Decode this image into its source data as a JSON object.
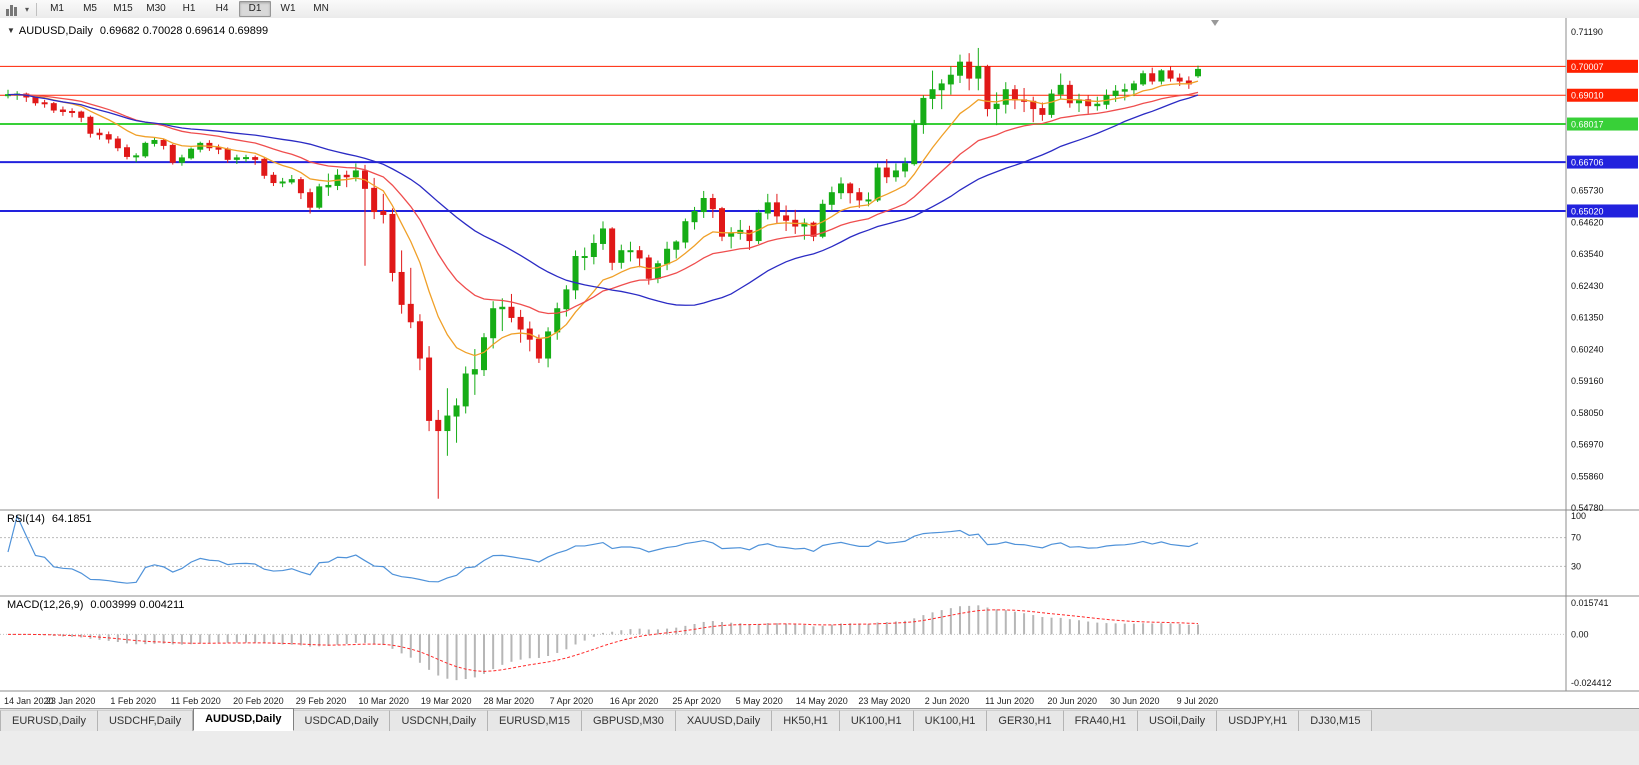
{
  "toolbar": {
    "timeframes": [
      "M1",
      "M5",
      "M15",
      "M30",
      "H1",
      "H4",
      "D1",
      "W1",
      "MN"
    ],
    "selected_timeframe": "D1"
  },
  "icons": {
    "chart_collapse": "▼",
    "toolbar_caret": "▾"
  },
  "main_chart": {
    "title": "AUDUSD,Daily",
    "ohlc": "0.69682 0.70028 0.69614 0.69899"
  },
  "rsi_panel": {
    "label": "RSI(14)",
    "value": "64.1851"
  },
  "macd_panel": {
    "label": "MACD(12,26,9)",
    "values": "0.003999 0.004211"
  },
  "chart_data": {
    "type": "candlestick",
    "title": "AUDUSD,Daily",
    "y_range": [
      0.5478,
      0.7119
    ],
    "y_ticks": [
      "0.71190",
      "0.65730",
      "0.64620",
      "0.63540",
      "0.62430",
      "0.61350",
      "0.60240",
      "0.59160",
      "0.58050",
      "0.56970",
      "0.55860",
      "0.54780"
    ],
    "x_labels": [
      "14 Jan 2020",
      "23 Jan 2020",
      "1 Feb 2020",
      "11 Feb 2020",
      "20 Feb 2020",
      "29 Feb 2020",
      "10 Mar 2020",
      "19 Mar 2020",
      "28 Mar 2020",
      "7 Apr 2020",
      "16 Apr 2020",
      "25 Apr 2020",
      "5 May 2020",
      "14 May 2020",
      "23 May 2020",
      "2 Jun 2020",
      "11 Jun 2020",
      "20 Jun 2020",
      "30 Jun 2020",
      "9 Jul 2020"
    ],
    "up_color": "#16ad16",
    "down_color": "#e01818",
    "hlines": [
      {
        "value": 0.70007,
        "label": "0.70007",
        "color": "#ff2000",
        "width": 1
      },
      {
        "value": 0.6901,
        "label": "0.69010",
        "color": "#ff2000",
        "width": 1
      },
      {
        "value": 0.68017,
        "label": "0.68017",
        "color": "#38d038",
        "width": 2
      },
      {
        "value": 0.66706,
        "label": "0.66706",
        "color": "#2222dd",
        "width": 2
      },
      {
        "value": 0.6502,
        "label": "0.65020",
        "color": "#2222dd",
        "width": 2
      }
    ],
    "moving_averages": [
      {
        "type": "ema",
        "period": 10,
        "color": "#f0a028"
      },
      {
        "type": "ema",
        "period": 22,
        "color": "#ef4e4e"
      },
      {
        "type": "sma",
        "period": 34,
        "color": "#2b2bc4"
      }
    ],
    "rsi": {
      "period": 14,
      "value": 64.1851,
      "color": "#4f92d9",
      "levels": [
        100,
        70,
        30
      ]
    },
    "macd": {
      "fast": 12,
      "slow": 26,
      "signal": 9,
      "hist_color": "#b6b6b6",
      "signal_color": "#ff2a2a",
      "axis_labels": [
        "0.015741",
        "0.00",
        "-0.024412"
      ]
    },
    "candles_ohlc": [
      [
        0.69,
        0.692,
        0.689,
        0.6903
      ],
      [
        0.6903,
        0.6915,
        0.6885,
        0.6905
      ],
      [
        0.6905,
        0.691,
        0.6878,
        0.6895
      ],
      [
        0.6895,
        0.69,
        0.6865,
        0.6875
      ],
      [
        0.6875,
        0.6885,
        0.6858,
        0.6872
      ],
      [
        0.6872,
        0.6878,
        0.684,
        0.685
      ],
      [
        0.685,
        0.6862,
        0.683,
        0.6845
      ],
      [
        0.6845,
        0.6856,
        0.6825,
        0.6843
      ],
      [
        0.6843,
        0.6848,
        0.6808,
        0.6825
      ],
      [
        0.6825,
        0.6831,
        0.6755,
        0.677
      ],
      [
        0.677,
        0.6786,
        0.6748,
        0.6765
      ],
      [
        0.6765,
        0.6776,
        0.6735,
        0.675
      ],
      [
        0.675,
        0.676,
        0.6708,
        0.672
      ],
      [
        0.672,
        0.6731,
        0.668,
        0.669
      ],
      [
        0.669,
        0.6701,
        0.667,
        0.6692
      ],
      [
        0.6692,
        0.6741,
        0.6685,
        0.6735
      ],
      [
        0.6735,
        0.6756,
        0.6724,
        0.6745
      ],
      [
        0.6745,
        0.6751,
        0.6714,
        0.6728
      ],
      [
        0.6728,
        0.6733,
        0.6662,
        0.667
      ],
      [
        0.667,
        0.6696,
        0.6658,
        0.6685
      ],
      [
        0.6685,
        0.6721,
        0.6679,
        0.6715
      ],
      [
        0.6715,
        0.6741,
        0.6704,
        0.6735
      ],
      [
        0.6735,
        0.6746,
        0.6709,
        0.672
      ],
      [
        0.672,
        0.6731,
        0.6698,
        0.6715
      ],
      [
        0.6715,
        0.6721,
        0.6668,
        0.668
      ],
      [
        0.668,
        0.6696,
        0.6664,
        0.6685
      ],
      [
        0.6685,
        0.6696,
        0.6671,
        0.6686
      ],
      [
        0.6686,
        0.6693,
        0.6661,
        0.668
      ],
      [
        0.668,
        0.6686,
        0.6613,
        0.6625
      ],
      [
        0.6625,
        0.6636,
        0.6588,
        0.66
      ],
      [
        0.66,
        0.6616,
        0.6584,
        0.6602
      ],
      [
        0.6602,
        0.6626,
        0.6594,
        0.661
      ],
      [
        0.661,
        0.6619,
        0.6543,
        0.6565
      ],
      [
        0.6565,
        0.6579,
        0.6493,
        0.6515
      ],
      [
        0.6515,
        0.6596,
        0.6508,
        0.6585
      ],
      [
        0.6585,
        0.6631,
        0.6554,
        0.659
      ],
      [
        0.659,
        0.6646,
        0.6574,
        0.6625
      ],
      [
        0.6625,
        0.6641,
        0.6584,
        0.662
      ],
      [
        0.662,
        0.6666,
        0.6604,
        0.664
      ],
      [
        0.664,
        0.6661,
        0.6313,
        0.658
      ],
      [
        0.658,
        0.6616,
        0.6474,
        0.65
      ],
      [
        0.65,
        0.6561,
        0.6459,
        0.649
      ],
      [
        0.649,
        0.6511,
        0.6259,
        0.629
      ],
      [
        0.629,
        0.6366,
        0.6148,
        0.618
      ],
      [
        0.618,
        0.6306,
        0.6098,
        0.612
      ],
      [
        0.612,
        0.6146,
        0.5953,
        0.5995
      ],
      [
        0.5995,
        0.6036,
        0.5743,
        0.578
      ],
      [
        0.578,
        0.5816,
        0.551,
        0.5745
      ],
      [
        0.5745,
        0.5891,
        0.5658,
        0.5795
      ],
      [
        0.5795,
        0.5856,
        0.5703,
        0.583
      ],
      [
        0.583,
        0.5966,
        0.5804,
        0.594
      ],
      [
        0.594,
        0.6026,
        0.5868,
        0.5955
      ],
      [
        0.5955,
        0.6081,
        0.5933,
        0.6065
      ],
      [
        0.6065,
        0.6191,
        0.6028,
        0.6165
      ],
      [
        0.6165,
        0.6201,
        0.6088,
        0.617
      ],
      [
        0.617,
        0.6216,
        0.6118,
        0.6135
      ],
      [
        0.6135,
        0.6161,
        0.6048,
        0.6095
      ],
      [
        0.6095,
        0.6121,
        0.6018,
        0.606
      ],
      [
        0.606,
        0.6076,
        0.5978,
        0.5995
      ],
      [
        0.5995,
        0.6101,
        0.5963,
        0.6085
      ],
      [
        0.6085,
        0.6186,
        0.6058,
        0.6165
      ],
      [
        0.6165,
        0.6246,
        0.6138,
        0.623
      ],
      [
        0.623,
        0.6366,
        0.6198,
        0.6345
      ],
      [
        0.6345,
        0.6376,
        0.6298,
        0.6345
      ],
      [
        0.6345,
        0.6421,
        0.6318,
        0.639
      ],
      [
        0.639,
        0.6466,
        0.6368,
        0.644
      ],
      [
        0.644,
        0.6446,
        0.6298,
        0.6325
      ],
      [
        0.6325,
        0.6386,
        0.6303,
        0.6365
      ],
      [
        0.6365,
        0.6396,
        0.6328,
        0.6365
      ],
      [
        0.6365,
        0.6381,
        0.6308,
        0.634
      ],
      [
        0.634,
        0.6351,
        0.6248,
        0.627
      ],
      [
        0.627,
        0.6331,
        0.6253,
        0.632
      ],
      [
        0.632,
        0.6396,
        0.6298,
        0.637
      ],
      [
        0.637,
        0.6401,
        0.6338,
        0.6395
      ],
      [
        0.6395,
        0.6476,
        0.6373,
        0.6465
      ],
      [
        0.6465,
        0.6516,
        0.6438,
        0.65
      ],
      [
        0.65,
        0.6571,
        0.6478,
        0.6545
      ],
      [
        0.6545,
        0.6561,
        0.6478,
        0.651
      ],
      [
        0.651,
        0.6516,
        0.6398,
        0.6415
      ],
      [
        0.6415,
        0.6446,
        0.6373,
        0.6425
      ],
      [
        0.6425,
        0.6471,
        0.6403,
        0.6435
      ],
      [
        0.6435,
        0.6451,
        0.6368,
        0.64
      ],
      [
        0.64,
        0.6506,
        0.6388,
        0.6495
      ],
      [
        0.6495,
        0.6561,
        0.6473,
        0.653
      ],
      [
        0.653,
        0.6561,
        0.6458,
        0.6485
      ],
      [
        0.6485,
        0.6521,
        0.6433,
        0.647
      ],
      [
        0.647,
        0.6506,
        0.6423,
        0.645
      ],
      [
        0.645,
        0.6476,
        0.6403,
        0.646
      ],
      [
        0.646,
        0.6466,
        0.6398,
        0.6415
      ],
      [
        0.6415,
        0.6541,
        0.6408,
        0.6525
      ],
      [
        0.6525,
        0.6586,
        0.6503,
        0.6565
      ],
      [
        0.6565,
        0.6618,
        0.6543,
        0.6595
      ],
      [
        0.6595,
        0.6601,
        0.6528,
        0.6565
      ],
      [
        0.6565,
        0.6581,
        0.6513,
        0.654
      ],
      [
        0.654,
        0.6566,
        0.6518,
        0.654
      ],
      [
        0.654,
        0.6666,
        0.6533,
        0.665
      ],
      [
        0.665,
        0.6681,
        0.6598,
        0.662
      ],
      [
        0.662,
        0.6666,
        0.6603,
        0.664
      ],
      [
        0.664,
        0.6686,
        0.6618,
        0.6665
      ],
      [
        0.6665,
        0.6816,
        0.6658,
        0.68
      ],
      [
        0.68,
        0.6901,
        0.6768,
        0.689
      ],
      [
        0.689,
        0.6986,
        0.6853,
        0.692
      ],
      [
        0.692,
        0.6956,
        0.6853,
        0.694
      ],
      [
        0.694,
        0.7001,
        0.6903,
        0.697
      ],
      [
        0.697,
        0.7041,
        0.6943,
        0.7015
      ],
      [
        0.7015,
        0.7046,
        0.6918,
        0.696
      ],
      [
        0.696,
        0.7064,
        0.6918,
        0.7
      ],
      [
        0.7,
        0.7006,
        0.6828,
        0.6855
      ],
      [
        0.6855,
        0.6911,
        0.6798,
        0.687
      ],
      [
        0.687,
        0.6946,
        0.6838,
        0.692
      ],
      [
        0.692,
        0.6936,
        0.6853,
        0.6885
      ],
      [
        0.6885,
        0.6926,
        0.6843,
        0.688
      ],
      [
        0.688,
        0.6896,
        0.6808,
        0.6855
      ],
      [
        0.6855,
        0.6876,
        0.6813,
        0.6835
      ],
      [
        0.6835,
        0.6921,
        0.6823,
        0.6905
      ],
      [
        0.6905,
        0.6976,
        0.6888,
        0.6935
      ],
      [
        0.6935,
        0.6951,
        0.6858,
        0.6875
      ],
      [
        0.6875,
        0.6906,
        0.6843,
        0.6885
      ],
      [
        0.6885,
        0.6901,
        0.6838,
        0.6865
      ],
      [
        0.6865,
        0.6896,
        0.6848,
        0.687
      ],
      [
        0.687,
        0.6921,
        0.6853,
        0.69
      ],
      [
        0.69,
        0.6936,
        0.6878,
        0.6915
      ],
      [
        0.6915,
        0.6941,
        0.6883,
        0.692
      ],
      [
        0.692,
        0.6951,
        0.6898,
        0.694
      ],
      [
        0.694,
        0.6986,
        0.6933,
        0.6975
      ],
      [
        0.6975,
        0.6996,
        0.6938,
        0.695
      ],
      [
        0.695,
        0.6991,
        0.6938,
        0.6985
      ],
      [
        0.6985,
        0.7001,
        0.6948,
        0.696
      ],
      [
        0.696,
        0.6976,
        0.6933,
        0.695
      ],
      [
        0.695,
        0.6966,
        0.6923,
        0.694
      ],
      [
        0.6968,
        0.7003,
        0.6961,
        0.699
      ]
    ]
  },
  "bottom_tabs": [
    {
      "label": "EURUSD,Daily",
      "active": false
    },
    {
      "label": "USDCHF,Daily",
      "active": false
    },
    {
      "label": "AUDUSD,Daily",
      "active": true
    },
    {
      "label": "USDCAD,Daily",
      "active": false
    },
    {
      "label": "USDCNH,Daily",
      "active": false
    },
    {
      "label": "EURUSD,M15",
      "active": false
    },
    {
      "label": "GBPUSD,M30",
      "active": false
    },
    {
      "label": "XAUUSD,Daily",
      "active": false
    },
    {
      "label": "HK50,H1",
      "active": false
    },
    {
      "label": "UK100,H1",
      "active": false
    },
    {
      "label": "UK100,H1",
      "active": false
    },
    {
      "label": "GER30,H1",
      "active": false
    },
    {
      "label": "FRA40,H1",
      "active": false
    },
    {
      "label": "USOil,Daily",
      "active": false
    },
    {
      "label": "USDJPY,H1",
      "active": false
    },
    {
      "label": "DJ30,M15",
      "active": false
    }
  ]
}
